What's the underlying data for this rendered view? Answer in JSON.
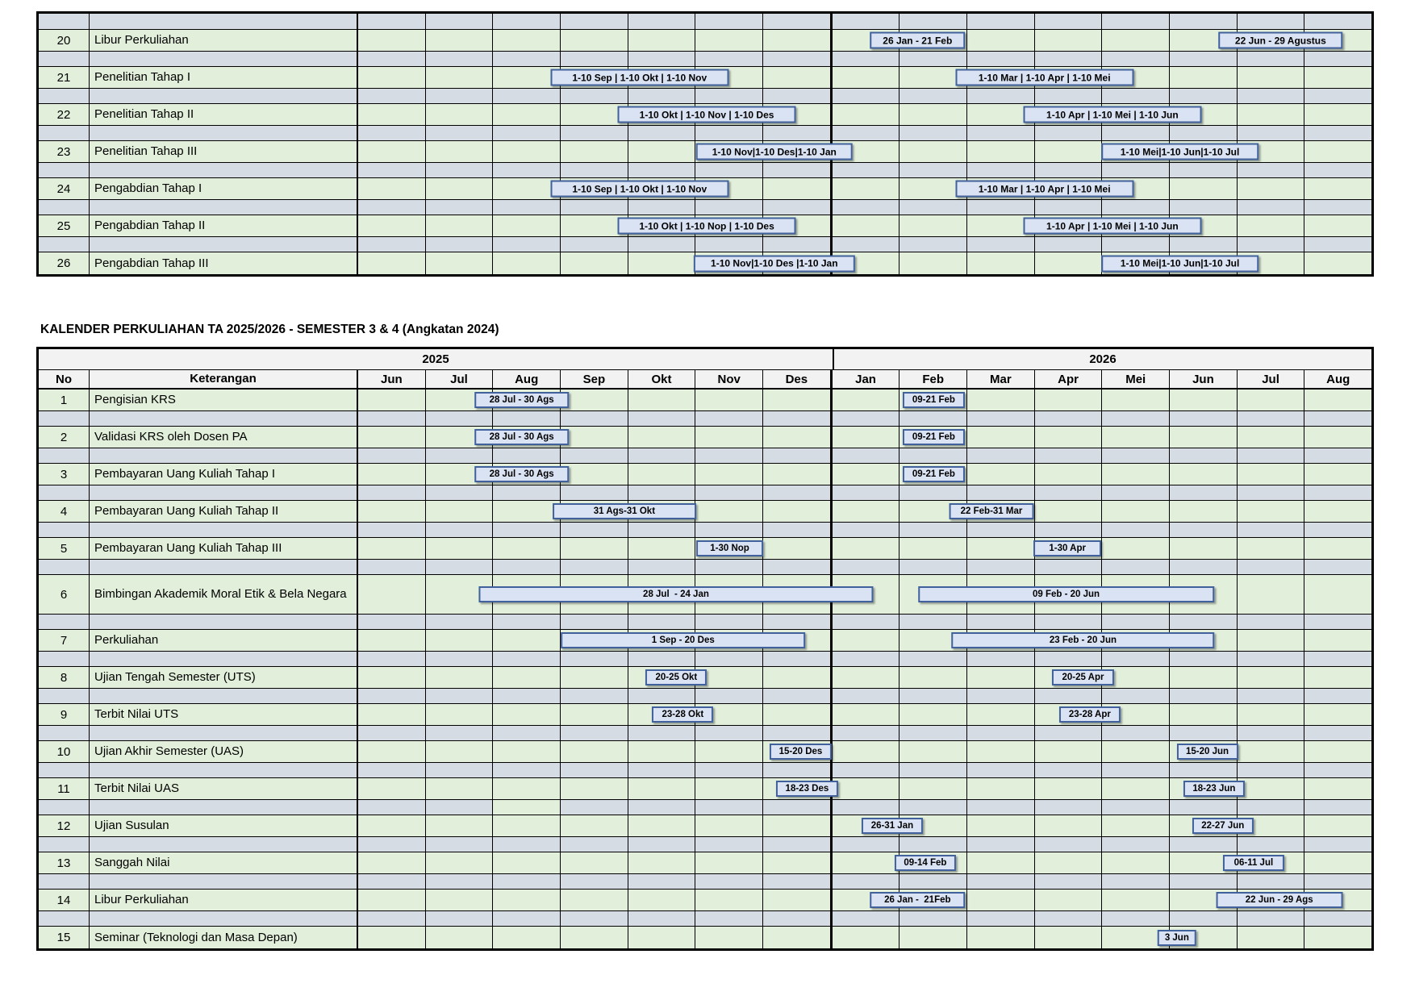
{
  "title": "KALENDER PERKULIAHAN TA 2025/2026 - SEMESTER 3 & 4 (Angkatan 2024)",
  "colors": {
    "content_row_green": "#e2efda",
    "spacer_row_gray": "#d6dce4",
    "bar_fill": "#dae3f3",
    "bar_border": "#41619d",
    "header_bg": "#f2f2f2",
    "grid_line": "#000000"
  },
  "months": [
    "Jun",
    "Jul",
    "Aug",
    "Sep",
    "Okt",
    "Nov",
    "Des",
    "Jan",
    "Feb",
    "Mar",
    "Apr",
    "Mei",
    "Jun",
    "Jul",
    "Aug"
  ],
  "table1": {
    "rows": [
      {
        "no": "20",
        "label": "Libur Perkuliahan",
        "bars": [
          {
            "label": "26 Jan - 21 Feb",
            "start": 7.81,
            "end": 8.75
          },
          {
            "label": "22 Jun - 29 Agustus",
            "start": 12.74,
            "end": 14.57
          }
        ]
      },
      {
        "no": "21",
        "label": "Penelitian Tahap I",
        "bars": [
          {
            "label": "1-10 Sep | 1-10 Okt | 1-10 Nov",
            "start": 3.0,
            "end": 5.33
          },
          {
            "label": "1-10 Mar | 1-10 Apr | 1-10 Mei",
            "start": 9.0,
            "end": 11.32
          }
        ]
      },
      {
        "no": "22",
        "label": "Penelitian Tahap II",
        "bars": [
          {
            "label": "1-10 Okt | 1-10 Nov | 1-10 Des",
            "start": 4.0,
            "end": 6.32
          },
          {
            "label": "1-10 Apr | 1-10 Mei | 1-10 Jun",
            "start": 10.0,
            "end": 12.33
          }
        ]
      },
      {
        "no": "23",
        "label": "Penelitian Tahap III",
        "bars": [
          {
            "label": "1-10 Nov|1-10 Des|1-10 Jan",
            "start": 5.0,
            "end": 7.32
          },
          {
            "label": "1-10 Mei|1-10 Jun|1-10 Jul",
            "start": 11.0,
            "end": 13.33
          }
        ]
      },
      {
        "no": "24",
        "label": "Pengabdian Tahap I",
        "bars": [
          {
            "label": "1-10 Sep | 1-10 Okt | 1-10 Nov",
            "start": 3.0,
            "end": 5.33
          },
          {
            "label": "1-10 Mar | 1-10 Apr | 1-10 Mei",
            "start": 9.0,
            "end": 11.32
          }
        ]
      },
      {
        "no": "25",
        "label": "Pengabdian Tahap II",
        "bars": [
          {
            "label": "1-10 Okt | 1-10 Nop | 1-10 Des",
            "start": 4.0,
            "end": 6.32
          },
          {
            "label": "1-10 Apr | 1-10 Mei | 1-10 Jun",
            "start": 10.0,
            "end": 12.33
          }
        ]
      },
      {
        "no": "26",
        "label": "Pengabdian Tahap III",
        "bars": [
          {
            "label": "1-10 Nov|1-10 Des |1-10 Jan",
            "start": 5.0,
            "end": 7.32
          },
          {
            "label": "1-10 Mei|1-10 Jun|1-10 Jul",
            "start": 11.0,
            "end": 13.33
          }
        ]
      }
    ]
  },
  "table2": {
    "year_left": "2025",
    "year_right": "2026",
    "col_no": "No",
    "col_keterangan": "Keterangan",
    "rows": [
      {
        "no": "1",
        "label": "Pengisian KRS",
        "bars": [
          {
            "label": "28 Jul - 30 Ags",
            "start": 1.87,
            "end": 2.97
          },
          {
            "label": "09-21 Feb",
            "start": 8.29,
            "end": 8.75
          }
        ]
      },
      {
        "no": "2",
        "label": "Validasi KRS oleh Dosen PA",
        "bars": [
          {
            "label": "28 Jul - 30 Ags",
            "start": 1.87,
            "end": 2.97
          },
          {
            "label": "09-21 Feb",
            "start": 8.29,
            "end": 8.75
          }
        ]
      },
      {
        "no": "3",
        "label": "Pembayaran Uang Kuliah Tahap I",
        "bars": [
          {
            "label": "28 Jul - 30 Ags",
            "start": 1.87,
            "end": 2.97
          },
          {
            "label": "09-21 Feb",
            "start": 8.29,
            "end": 8.75
          }
        ]
      },
      {
        "no": "4",
        "label": "Pembayaran Uang Kuliah Tahap II",
        "bars": [
          {
            "label": "31 Ags-31 Okt",
            "start": 2.88,
            "end": 5.0
          },
          {
            "label": "22 Feb-31 Mar",
            "start": 8.75,
            "end": 10.0
          }
        ]
      },
      {
        "no": "5",
        "label": "Pembayaran Uang Kuliah Tahap III",
        "bars": [
          {
            "label": "1-30 Nop",
            "start": 5.0,
            "end": 6.0
          },
          {
            "label": "1-30 Apr",
            "start": 10.0,
            "end": 11.0
          }
        ]
      },
      {
        "no": "6",
        "label": "Bimbingan Akademik Moral Etik & Bela Negara",
        "bars": [
          {
            "label": "28 Jul  - 24 Jan",
            "start": 1.79,
            "end": 7.62
          },
          {
            "label": "09 Feb - 20 Jun",
            "start": 8.29,
            "end": 12.67
          }
        ]
      },
      {
        "no": "7",
        "label": "Perkuliahan",
        "bars": [
          {
            "label": "1 Sep - 20 Des",
            "start": 3.0,
            "end": 6.62
          },
          {
            "label": "23 Feb - 20 Jun",
            "start": 8.79,
            "end": 12.67
          }
        ]
      },
      {
        "no": "8",
        "label": "Ujian Tengah Semester (UTS)",
        "bars": [
          {
            "label": "20-25 Okt",
            "start": 4.61,
            "end": 4.81
          },
          {
            "label": "20-25 Apr",
            "start": 10.63,
            "end": 10.83
          }
        ]
      },
      {
        "no": "9",
        "label": "Terbit Nilai UTS",
        "bars": [
          {
            "label": "23-28 Okt",
            "start": 4.71,
            "end": 4.9
          },
          {
            "label": "23-28 Apr",
            "start": 10.73,
            "end": 10.93
          }
        ]
      },
      {
        "no": "10",
        "label": "Ujian Akhir Semester (UAS)",
        "bars": [
          {
            "label": "15-20 Des",
            "start": 6.45,
            "end": 6.65
          },
          {
            "label": "15-20 Jun",
            "start": 12.47,
            "end": 12.67
          }
        ]
      },
      {
        "no": "11",
        "label": " Terbit Nilai UAS",
        "bars": [
          {
            "label": "18-23 Des",
            "start": 6.55,
            "end": 6.74
          },
          {
            "label": "18-23 Jun",
            "start": 12.57,
            "end": 12.77
          }
        ]
      },
      {
        "no": "12",
        "label": "Ujian Susulan",
        "bars": [
          {
            "label": "26-31 Jan",
            "start": 7.81,
            "end": 8.0
          },
          {
            "label": "22-27 Jun",
            "start": 12.7,
            "end": 12.9
          }
        ]
      },
      {
        "no": "13",
        "label": "Sanggah Nilai",
        "bars": [
          {
            "label": "09-14 Feb",
            "start": 8.29,
            "end": 8.5
          },
          {
            "label": "06-11 Jul",
            "start": 13.16,
            "end": 13.35
          }
        ]
      },
      {
        "no": "14",
        "label": "Libur Perkuliahan",
        "bars": [
          {
            "label": "26 Jan -  21Feb",
            "start": 7.81,
            "end": 8.75
          },
          {
            "label": "22 Jun - 29 Ags",
            "start": 12.7,
            "end": 14.57
          }
        ]
      },
      {
        "no": "15",
        "label": "Seminar (Teknologi dan Masa Depan)",
        "bars": [
          {
            "label": "3 Jun",
            "start": 12.07,
            "end": 12.17
          }
        ]
      }
    ]
  }
}
